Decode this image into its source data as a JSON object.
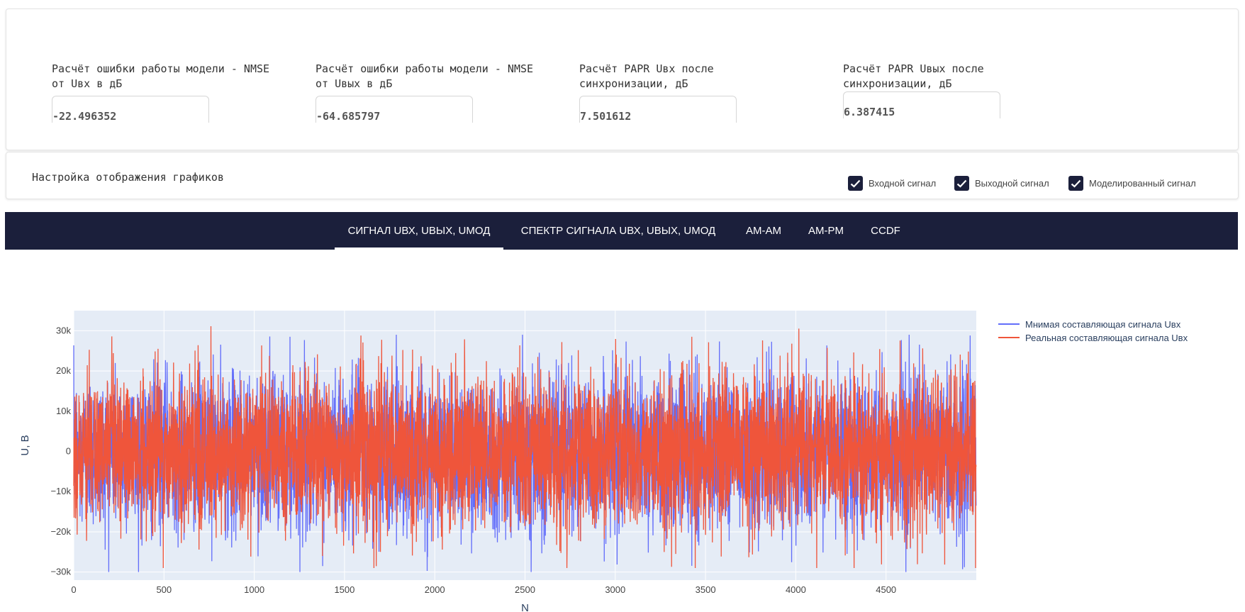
{
  "metrics": [
    {
      "label": "Расчёт ошибки работы модели - NMSE\nот Uвх в дБ",
      "value": "-22.496352"
    },
    {
      "label": "Расчёт ошибки работы модели - NMSE\nот Uвых в дБ",
      "value": "-64.685797"
    },
    {
      "label": "Расчёт PAPR Uвх после\nсинхронизации, дБ",
      "value": "7.501612"
    },
    {
      "label": "Расчёт PAPR Uвых после\nсинхронизации, дБ",
      "value": "6.387415"
    }
  ],
  "settings": {
    "title": "Настройка отображения графиков",
    "checkboxes": [
      {
        "label": "Входной сигнал",
        "checked": true
      },
      {
        "label": "Выходной сигнал",
        "checked": true
      },
      {
        "label": "Моделированный сигнал",
        "checked": true
      }
    ]
  },
  "tabs": [
    {
      "label": "СИГНАЛ UВХ, UВЫХ, UМОД",
      "active": true
    },
    {
      "label": "СПЕКТР СИГНАЛА UВХ, UВЫХ, UМОД",
      "active": false
    },
    {
      "label": "AM-AM",
      "active": false
    },
    {
      "label": "AM-PM",
      "active": false
    },
    {
      "label": "CCDF",
      "active": false
    }
  ],
  "colors": {
    "nav_bg": "#1b1f3b",
    "plot_bg": "#e5ecf6",
    "series_imag": "#636efa",
    "series_real": "#ef553b"
  },
  "chart_data": {
    "type": "line",
    "xlabel": "N",
    "ylabel": "U, B",
    "xlim": [
      0,
      5000
    ],
    "ylim": [
      -32000,
      35000
    ],
    "xticks": [
      0,
      500,
      1000,
      1500,
      2000,
      2500,
      3000,
      3500,
      4000,
      4500
    ],
    "xtick_labels": [
      "0",
      "500",
      "1000",
      "1500",
      "2000",
      "2500",
      "3000",
      "3500",
      "4000",
      "4500"
    ],
    "yticks": [
      30000,
      20000,
      10000,
      0,
      -10000,
      -20000,
      -30000
    ],
    "ytick_labels": [
      "30k",
      "20k",
      "10k",
      "0",
      "−10k",
      "−20k",
      "−30k"
    ],
    "grid": true,
    "legend_position": "right",
    "n_points": 5000,
    "series": [
      {
        "name": "Мнимая составляющая сигнала Uвх",
        "color": "#636efa",
        "amplitude_std": 9500,
        "range": [
          -30000,
          29000
        ]
      },
      {
        "name": "Реальная составляющая сигнала Uвх",
        "color": "#ef553b",
        "amplitude_std": 9500,
        "range": [
          -29000,
          32000
        ]
      }
    ]
  }
}
